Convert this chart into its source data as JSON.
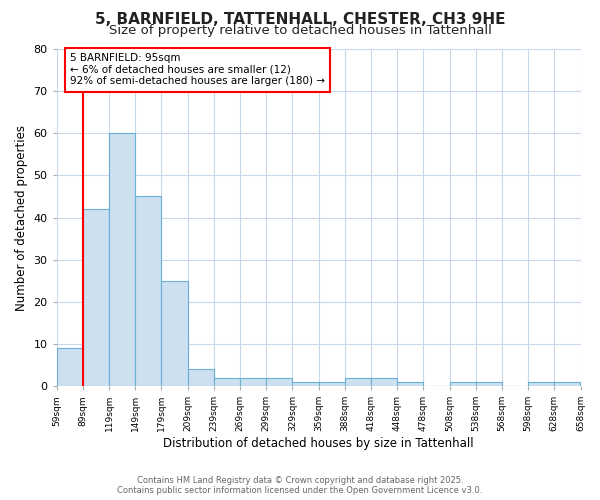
{
  "title": "5, BARNFIELD, TATTENHALL, CHESTER, CH3 9HE",
  "subtitle": "Size of property relative to detached houses in Tattenhall",
  "xlabel": "Distribution of detached houses by size in Tattenhall",
  "ylabel": "Number of detached properties",
  "categories": [
    "59sqm",
    "89sqm",
    "119sqm",
    "149sqm",
    "179sqm",
    "209sqm",
    "239sqm",
    "269sqm",
    "299sqm",
    "329sqm",
    "359sqm",
    "388sqm",
    "418sqm",
    "448sqm",
    "478sqm",
    "508sqm",
    "538sqm",
    "568sqm",
    "598sqm",
    "628sqm",
    "658sqm"
  ],
  "values": [
    9,
    42,
    60,
    45,
    25,
    4,
    2,
    2,
    2,
    1,
    1,
    2,
    2,
    1,
    0,
    1,
    1,
    0,
    1,
    1,
    0
  ],
  "bar_color": "#cce0f0",
  "bar_edge_color": "#6aafd6",
  "red_line_x": 1,
  "annotation_title": "5 BARNFIELD: 95sqm",
  "annotation_line1": "← 6% of detached houses are smaller (12)",
  "annotation_line2": "92% of semi-detached houses are larger (180) →",
  "ylim": [
    0,
    80
  ],
  "yticks": [
    0,
    10,
    20,
    30,
    40,
    50,
    60,
    70,
    80
  ],
  "footer1": "Contains HM Land Registry data © Crown copyright and database right 2025.",
  "footer2": "Contains public sector information licensed under the Open Government Licence v3.0.",
  "bg_color": "#ffffff",
  "plot_bg_color": "#ffffff",
  "grid_color": "#c8d8ea",
  "title_fontsize": 11,
  "subtitle_fontsize": 9.5,
  "label_fontsize": 8.5
}
